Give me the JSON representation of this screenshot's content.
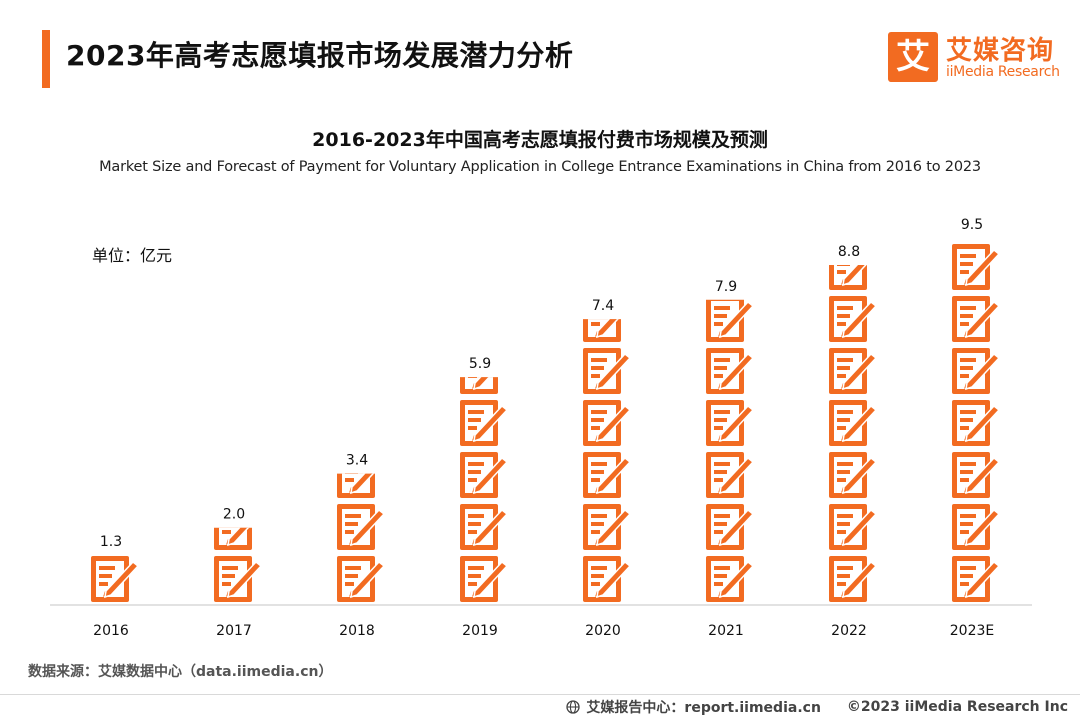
{
  "header": {
    "title": "2023年高考志愿填报市场发展潜力分析"
  },
  "logo": {
    "mark": "艾",
    "cn": "艾媒咨询",
    "en": "iiMedia Research"
  },
  "colors": {
    "accent": "#f26b21",
    "axis": "#d9d9d9"
  },
  "chart_data": {
    "type": "bar",
    "title": "2016-2023年中国高考志愿填报付费市场规模及预测",
    "subtitle": "Market Size and Forecast of Payment for Voluntary Application in College Entrance Examinations in China from 2016 to 2023",
    "unit_label": "单位：亿元",
    "categories": [
      "2016",
      "2017",
      "2018",
      "2019",
      "2020",
      "2021",
      "2022",
      "2023E"
    ],
    "values": [
      1.3,
      2.0,
      3.4,
      5.9,
      7.4,
      7.9,
      8.8,
      9.5
    ],
    "value_labels": [
      "1.3",
      "2.0",
      "3.4",
      "5.9",
      "7.4",
      "7.9",
      "8.8",
      "9.5"
    ],
    "icon": "document-pencil-icon",
    "ylim": [
      0,
      9.5
    ],
    "grid": false,
    "legend": "none"
  },
  "footer": {
    "source": "数据来源：艾媒数据中心（data.iimedia.cn）",
    "report_center": "艾媒报告中心：report.iimedia.cn",
    "copyright": "©2023  iiMedia Research  Inc"
  }
}
